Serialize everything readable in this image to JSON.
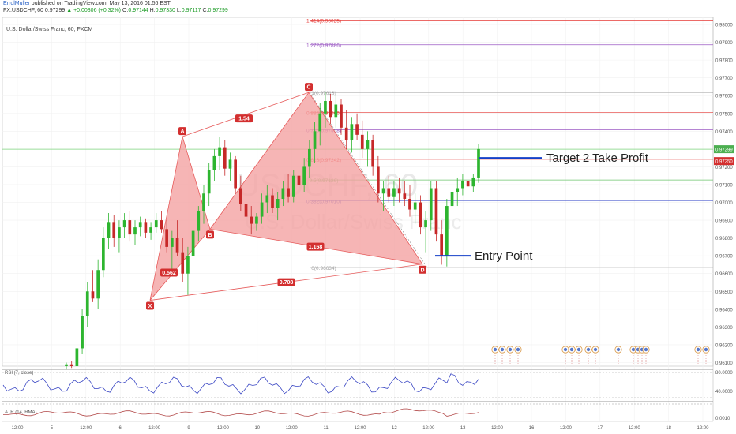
{
  "header": {
    "author": "ErrolMuller",
    "published": "published on TradingView.com, May 13, 2016 01:56 EST",
    "symbol": "FX:USDCHF, 60",
    "last": "0.97299",
    "change": "+0.00306 (+0.32%)",
    "open_label": "O:",
    "open": "0.97144",
    "high_label": "H:",
    "high": "0.97330",
    "low_label": "L:",
    "low": "0.97117",
    "close_label": "C:",
    "close": "0.97299"
  },
  "colors": {
    "up_candle": "#2db52f",
    "down_candle": "#c62828",
    "pattern_fill": "#f4a2a2",
    "pattern_line": "#e65b5b",
    "fib_red": "#e53935",
    "fib_purple": "#9c5bc4",
    "fib_green": "#6cc66c",
    "fib_blue": "#5060d0",
    "fib_gray": "#9e9e9e",
    "annotation_blue": "#1540c8",
    "rsi_line": "#3a47c4",
    "atr_line": "#b34b4b"
  },
  "chart_data": {
    "type": "candlestick",
    "title": "U.S. Dollar/Swiss Franc, 60, FXCM",
    "watermark_symbol": "USDCHF, 60",
    "watermark_name": "U.S. Dollar/Swiss Franc",
    "ylim": [
      0.9608,
      0.9804
    ],
    "y_ticks": [
      "0.98000",
      "0.97900",
      "0.97800",
      "0.97700",
      "0.97600",
      "0.97500",
      "0.97400",
      "0.97300",
      "0.97200",
      "0.97100",
      "0.97000",
      "0.96900",
      "0.96800",
      "0.96700",
      "0.96600",
      "0.96500",
      "0.96400",
      "0.96300",
      "0.96200",
      "0.96100"
    ],
    "last_price_label": "0.97299",
    "last_price": 0.97299,
    "target_price_label": "0.97250",
    "target_price": 0.9725,
    "x_ticks": [
      "12:00",
      "5",
      "12:00",
      "6",
      "12:00",
      "9",
      "12:00",
      "10",
      "12:00",
      "11",
      "12:00",
      "12",
      "12:00",
      "13",
      "12:00",
      "16",
      "12:00",
      "17",
      "12:00",
      "18",
      "12:00"
    ],
    "pattern_points": [
      {
        "label": "X",
        "price": 0.9645
      },
      {
        "label": "A",
        "price": 0.9737
      },
      {
        "label": "B",
        "price": 0.9685
      },
      {
        "label": "C",
        "price": 0.97618
      },
      {
        "label": "D",
        "price": 0.96653
      }
    ],
    "pattern_ratios": [
      "1.54",
      "0.562",
      "1.168",
      "0.708"
    ],
    "fib_levels": [
      {
        "label": "1.414(0.98025)",
        "price": 0.98025,
        "color": "red"
      },
      {
        "label": "1.272(0.97886)",
        "price": 0.97886,
        "color": "purple"
      },
      {
        "label": "1(0.97618)",
        "price": 0.97618,
        "color": "gray"
      },
      {
        "label": "0.886(0.97506)",
        "price": 0.97506,
        "color": "red"
      },
      {
        "label": "0.786(0.97408)",
        "price": 0.97408,
        "color": "purple"
      },
      {
        "label": "0.618(0.97242)",
        "price": 0.97242,
        "color": "red"
      },
      {
        "label": "0.5(0.97126)",
        "price": 0.97126,
        "color": "green"
      },
      {
        "label": "0.382(0.97010)",
        "price": 0.9701,
        "color": "blue"
      },
      {
        "label": "0(0.96634)",
        "price": 0.96634,
        "color": "gray"
      }
    ],
    "annotations": [
      "Target 2 Take Profit",
      "Entry Point"
    ],
    "candles": [
      [
        0.9608,
        0.961,
        0.9606,
        0.9609
      ],
      [
        0.9609,
        0.9611,
        0.9607,
        0.9608
      ],
      [
        0.9608,
        0.962,
        0.9606,
        0.9618
      ],
      [
        0.9618,
        0.964,
        0.9615,
        0.9636
      ],
      [
        0.9636,
        0.9655,
        0.963,
        0.965
      ],
      [
        0.965,
        0.9662,
        0.9644,
        0.9646
      ],
      [
        0.9646,
        0.9668,
        0.964,
        0.9662
      ],
      [
        0.9662,
        0.9686,
        0.9658,
        0.968
      ],
      [
        0.968,
        0.9694,
        0.9674,
        0.9689
      ],
      [
        0.9689,
        0.9693,
        0.9675,
        0.968
      ],
      [
        0.968,
        0.969,
        0.9672,
        0.9686
      ],
      [
        0.9686,
        0.9694,
        0.968,
        0.969
      ],
      [
        0.969,
        0.9695,
        0.9678,
        0.9682
      ],
      [
        0.9682,
        0.969,
        0.9676,
        0.9686
      ],
      [
        0.9686,
        0.9692,
        0.9681,
        0.9689
      ],
      [
        0.9689,
        0.9691,
        0.968,
        0.9683
      ],
      [
        0.9683,
        0.9689,
        0.9679,
        0.9686
      ],
      [
        0.9686,
        0.9694,
        0.9683,
        0.969
      ],
      [
        0.969,
        0.9695,
        0.9683,
        0.9685
      ],
      [
        0.9685,
        0.969,
        0.9672,
        0.9675
      ],
      [
        0.9675,
        0.9684,
        0.9662,
        0.968
      ],
      [
        0.968,
        0.969,
        0.967,
        0.9672
      ],
      [
        0.9672,
        0.968,
        0.9655,
        0.966
      ],
      [
        0.966,
        0.9675,
        0.9648,
        0.967
      ],
      [
        0.967,
        0.9686,
        0.9664,
        0.9684
      ],
      [
        0.9684,
        0.9698,
        0.9678,
        0.9695
      ],
      [
        0.9695,
        0.971,
        0.9688,
        0.9705
      ],
      [
        0.9705,
        0.9722,
        0.9698,
        0.9718
      ],
      [
        0.9718,
        0.973,
        0.9712,
        0.9726
      ],
      [
        0.9726,
        0.9737,
        0.9718,
        0.9731
      ],
      [
        0.9731,
        0.9735,
        0.9715,
        0.9719
      ],
      [
        0.9719,
        0.9728,
        0.9712,
        0.9724
      ],
      [
        0.9724,
        0.9726,
        0.9705,
        0.9708
      ],
      [
        0.9708,
        0.9715,
        0.9695,
        0.9699
      ],
      [
        0.9699,
        0.9705,
        0.9688,
        0.9692
      ],
      [
        0.9692,
        0.9698,
        0.9682,
        0.9688
      ],
      [
        0.9688,
        0.9694,
        0.9684,
        0.9692
      ],
      [
        0.9692,
        0.9705,
        0.9688,
        0.97
      ],
      [
        0.97,
        0.971,
        0.9694,
        0.9704
      ],
      [
        0.9704,
        0.9708,
        0.9694,
        0.9697
      ],
      [
        0.9697,
        0.9706,
        0.969,
        0.9702
      ],
      [
        0.9702,
        0.9712,
        0.9698,
        0.9708
      ],
      [
        0.9708,
        0.9716,
        0.97,
        0.9703
      ],
      [
        0.9703,
        0.9718,
        0.97,
        0.9715
      ],
      [
        0.9715,
        0.9722,
        0.9706,
        0.971
      ],
      [
        0.971,
        0.9725,
        0.9706,
        0.972
      ],
      [
        0.972,
        0.9735,
        0.9714,
        0.973
      ],
      [
        0.973,
        0.9745,
        0.9722,
        0.974
      ],
      [
        0.974,
        0.9756,
        0.9732,
        0.975
      ],
      [
        0.975,
        0.9762,
        0.9742,
        0.9757
      ],
      [
        0.9757,
        0.9761,
        0.9744,
        0.9748
      ],
      [
        0.9748,
        0.976,
        0.9742,
        0.9755
      ],
      [
        0.9755,
        0.9758,
        0.9738,
        0.9742
      ],
      [
        0.9742,
        0.9752,
        0.973,
        0.9735
      ],
      [
        0.9735,
        0.9748,
        0.9728,
        0.9744
      ],
      [
        0.9744,
        0.975,
        0.9735,
        0.9738
      ],
      [
        0.9738,
        0.9746,
        0.9725,
        0.973
      ],
      [
        0.973,
        0.974,
        0.972,
        0.9735
      ],
      [
        0.9735,
        0.9738,
        0.9715,
        0.972
      ],
      [
        0.972,
        0.9726,
        0.97,
        0.9705
      ],
      [
        0.9705,
        0.9712,
        0.9695,
        0.9708
      ],
      [
        0.9708,
        0.9715,
        0.97,
        0.9703
      ],
      [
        0.9703,
        0.9712,
        0.9698,
        0.9708
      ],
      [
        0.9708,
        0.9714,
        0.97,
        0.9705
      ],
      [
        0.9705,
        0.9712,
        0.9698,
        0.9702
      ],
      [
        0.9702,
        0.971,
        0.9692,
        0.9696
      ],
      [
        0.9696,
        0.9705,
        0.9688,
        0.97
      ],
      [
        0.97,
        0.9704,
        0.9682,
        0.9686
      ],
      [
        0.9686,
        0.9695,
        0.9672,
        0.969
      ],
      [
        0.969,
        0.9712,
        0.9684,
        0.9708
      ],
      [
        0.9708,
        0.9712,
        0.9678,
        0.9682
      ],
      [
        0.9682,
        0.969,
        0.9665,
        0.967
      ],
      [
        0.967,
        0.9702,
        0.9664,
        0.9698
      ],
      [
        0.9698,
        0.9712,
        0.9692,
        0.9706
      ],
      [
        0.9706,
        0.9714,
        0.9698,
        0.9708
      ],
      [
        0.9708,
        0.9716,
        0.9704,
        0.9712
      ],
      [
        0.9712,
        0.9715,
        0.9706,
        0.9709
      ],
      [
        0.9709,
        0.9716,
        0.9706,
        0.9714
      ],
      [
        0.9714,
        0.9733,
        0.9711,
        0.973
      ]
    ]
  },
  "rsi": {
    "label": "RSI (7, close)",
    "ticks": [
      "80.0000",
      "40.0000"
    ]
  },
  "atr": {
    "label": "ATR (14, RMA)",
    "ticks": [
      "0.0010"
    ]
  }
}
